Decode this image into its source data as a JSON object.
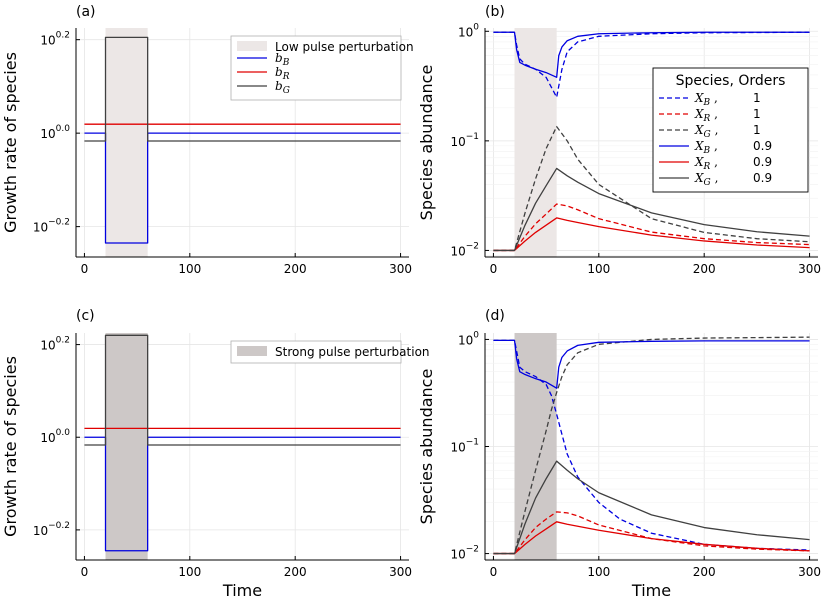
{
  "panels": [
    {
      "id": "a",
      "label": "(a)",
      "type": "line",
      "xlabel": "",
      "ylabel": "Growth rate of species",
      "xlim": [
        -8,
        308
      ],
      "xticks": [
        0,
        100,
        200,
        300
      ],
      "xtick_labels": [
        "0",
        "100",
        "200",
        "300"
      ],
      "yscale": "log10",
      "ylim_log": [
        -0.265,
        0.225
      ],
      "yticks_log": [
        -0.2,
        0.0,
        0.2
      ],
      "ytick_labels": [
        [
          "10",
          "−0.2"
        ],
        [
          "10",
          "0.0"
        ],
        [
          "10",
          "0.2"
        ]
      ],
      "shade": {
        "x0": 20,
        "x1": 60,
        "color": "#ece7e6"
      },
      "legend": {
        "position": "top-right",
        "shade_label": "Low pulse perturbation",
        "entries": [
          {
            "label": "b",
            "sub": "B",
            "color": "#0000e0"
          },
          {
            "label": "b",
            "sub": "R",
            "color": "#e00000"
          },
          {
            "label": "b",
            "sub": "G",
            "color": "#404040"
          }
        ]
      },
      "series": [
        {
          "name": "b_B",
          "color": "#0000e0",
          "dash": false,
          "x": [
            0,
            20,
            20,
            60,
            60,
            300
          ],
          "y_log": [
            0.0,
            0.0,
            -0.235,
            -0.235,
            0.0,
            0.0
          ]
        },
        {
          "name": "b_R",
          "color": "#e00000",
          "dash": false,
          "x": [
            0,
            300
          ],
          "y_log": [
            0.0192,
            0.0192
          ]
        },
        {
          "name": "b_G",
          "color": "#404040",
          "dash": false,
          "x": [
            0,
            20,
            20,
            60,
            60,
            300
          ],
          "y_log": [
            -0.0168,
            -0.0168,
            0.205,
            0.205,
            -0.0168,
            -0.0168
          ]
        }
      ]
    },
    {
      "id": "b",
      "label": "(b)",
      "type": "line",
      "xlabel": "",
      "ylabel": "Species abundance",
      "xlim": [
        -8,
        308
      ],
      "xticks": [
        0,
        100,
        200,
        300
      ],
      "xtick_labels": [
        "0",
        "100",
        "200",
        "300"
      ],
      "yscale": "log10",
      "ylim_log": [
        -2.06,
        0.03
      ],
      "yticks_log": [
        -2,
        -1,
        0
      ],
      "ytick_labels": [
        [
          "10",
          "−2"
        ],
        [
          "10",
          "−1"
        ],
        [
          "10",
          "0"
        ]
      ],
      "shade": {
        "x0": 20,
        "x1": 60,
        "color": "#ece7e6"
      },
      "legend": {
        "position": "right",
        "title": "Species, Orders",
        "entries": [
          {
            "label": "X",
            "sub": "B",
            "order": "1",
            "color": "#0000e0",
            "dash": true
          },
          {
            "label": "X",
            "sub": "R",
            "order": "1",
            "color": "#e00000",
            "dash": true
          },
          {
            "label": "X",
            "sub": "G",
            "order": "1",
            "color": "#404040",
            "dash": true
          },
          {
            "label": "X",
            "sub": "B",
            "order": "0.9",
            "color": "#0000e0",
            "dash": false
          },
          {
            "label": "X",
            "sub": "R",
            "order": "0.9",
            "color": "#e00000",
            "dash": false
          },
          {
            "label": "X",
            "sub": "G",
            "order": "0.9",
            "color": "#404040",
            "dash": false
          }
        ]
      },
      "series": [
        {
          "name": "X_B order 1",
          "color": "#0000e0",
          "dash": true,
          "x": [
            0,
            20,
            22,
            25,
            30,
            40,
            50,
            60,
            65,
            70,
            80,
            100,
            150,
            200,
            300
          ],
          "y": [
            0.98,
            0.98,
            0.75,
            0.56,
            0.5,
            0.45,
            0.38,
            0.25,
            0.45,
            0.65,
            0.8,
            0.9,
            0.95,
            0.97,
            0.98
          ]
        },
        {
          "name": "X_R order 1",
          "color": "#e00000",
          "dash": true,
          "x": [
            0,
            20,
            30,
            40,
            50,
            60,
            70,
            80,
            100,
            150,
            200,
            250,
            300
          ],
          "y": [
            0.01,
            0.01,
            0.0135,
            0.0175,
            0.0215,
            0.0265,
            0.0255,
            0.0235,
            0.0195,
            0.0147,
            0.0128,
            0.0118,
            0.0113
          ]
        },
        {
          "name": "X_G order 1",
          "color": "#404040",
          "dash": true,
          "x": [
            0,
            20,
            30,
            40,
            50,
            60,
            70,
            80,
            100,
            150,
            200,
            250,
            300
          ],
          "y": [
            0.01,
            0.01,
            0.022,
            0.045,
            0.085,
            0.135,
            0.1,
            0.068,
            0.04,
            0.0195,
            0.0146,
            0.0128,
            0.012
          ]
        },
        {
          "name": "X_B order 0.9",
          "color": "#0000e0",
          "dash": false,
          "x": [
            0,
            20,
            22,
            25,
            30,
            40,
            50,
            60,
            62,
            65,
            70,
            80,
            100,
            150,
            200,
            300
          ],
          "y": [
            0.98,
            0.98,
            0.68,
            0.52,
            0.49,
            0.45,
            0.42,
            0.38,
            0.6,
            0.72,
            0.82,
            0.9,
            0.95,
            0.97,
            0.98,
            0.98
          ]
        },
        {
          "name": "X_R order 0.9",
          "color": "#e00000",
          "dash": false,
          "x": [
            0,
            20,
            30,
            40,
            50,
            60,
            70,
            80,
            100,
            150,
            200,
            250,
            300
          ],
          "y": [
            0.01,
            0.01,
            0.0122,
            0.0146,
            0.017,
            0.0198,
            0.0188,
            0.018,
            0.0165,
            0.0138,
            0.0122,
            0.0112,
            0.0106
          ]
        },
        {
          "name": "X_G order 0.9",
          "color": "#404040",
          "dash": false,
          "x": [
            0,
            20,
            30,
            40,
            50,
            60,
            70,
            80,
            100,
            150,
            200,
            250,
            300
          ],
          "y": [
            0.01,
            0.01,
            0.017,
            0.027,
            0.039,
            0.056,
            0.048,
            0.042,
            0.033,
            0.022,
            0.0172,
            0.0148,
            0.0135
          ]
        }
      ]
    },
    {
      "id": "c",
      "label": "(c)",
      "type": "line",
      "xlabel": "Time",
      "ylabel": "Growth rate of species",
      "xlim": [
        -8,
        308
      ],
      "xticks": [
        0,
        100,
        200,
        300
      ],
      "xtick_labels": [
        "0",
        "100",
        "200",
        "300"
      ],
      "yscale": "log10",
      "ylim_log": [
        -0.265,
        0.225
      ],
      "yticks_log": [
        -0.2,
        0.0,
        0.2
      ],
      "ytick_labels": [
        [
          "10",
          "−0.2"
        ],
        [
          "10",
          "0.0"
        ],
        [
          "10",
          "0.2"
        ]
      ],
      "shade": {
        "x0": 20,
        "x1": 60,
        "color": "#cdc8c7"
      },
      "legend": {
        "position": "top-right",
        "shade_label": "Strong pulse perturbation",
        "entries": []
      },
      "series": [
        {
          "name": "b_B",
          "color": "#0000e0",
          "dash": false,
          "x": [
            0,
            20,
            20,
            60,
            60,
            300
          ],
          "y_log": [
            0.0,
            0.0,
            -0.245,
            -0.245,
            0.0,
            0.0
          ]
        },
        {
          "name": "b_R",
          "color": "#e00000",
          "dash": false,
          "x": [
            0,
            300
          ],
          "y_log": [
            0.0192,
            0.0192
          ]
        },
        {
          "name": "b_G",
          "color": "#404040",
          "dash": false,
          "x": [
            0,
            20,
            20,
            60,
            60,
            300
          ],
          "y_log": [
            -0.0168,
            -0.0168,
            0.22,
            0.22,
            -0.0168,
            -0.0168
          ]
        }
      ]
    },
    {
      "id": "d",
      "label": "(d)",
      "type": "line",
      "xlabel": "Time",
      "ylabel": "Species abundance",
      "xlim": [
        -8,
        308
      ],
      "xticks": [
        0,
        100,
        200,
        300
      ],
      "xtick_labels": [
        "0",
        "100",
        "200",
        "300"
      ],
      "yscale": "log10",
      "ylim_log": [
        -2.06,
        0.06
      ],
      "yticks_log": [
        -2,
        -1,
        0
      ],
      "ytick_labels": [
        [
          "10",
          "−2"
        ],
        [
          "10",
          "−1"
        ],
        [
          "10",
          "0"
        ]
      ],
      "shade": {
        "x0": 20,
        "x1": 60,
        "color": "#cdc8c7"
      },
      "legend": null,
      "series": [
        {
          "name": "X_B order 1",
          "color": "#0000e0",
          "dash": true,
          "x": [
            0,
            20,
            25,
            30,
            40,
            50,
            55,
            60,
            65,
            70,
            80,
            100,
            120,
            150,
            200,
            250,
            300
          ],
          "y": [
            0.98,
            0.98,
            0.55,
            0.5,
            0.45,
            0.38,
            0.3,
            0.2,
            0.13,
            0.085,
            0.052,
            0.03,
            0.021,
            0.0155,
            0.0122,
            0.0112,
            0.0108
          ]
        },
        {
          "name": "X_R order 1",
          "color": "#e00000",
          "dash": true,
          "x": [
            0,
            20,
            30,
            40,
            50,
            60,
            70,
            80,
            100,
            150,
            200,
            250,
            300
          ],
          "y": [
            0.01,
            0.01,
            0.0135,
            0.0175,
            0.021,
            0.0245,
            0.024,
            0.0225,
            0.0185,
            0.0138,
            0.0118,
            0.011,
            0.0106
          ]
        },
        {
          "name": "X_G order 1",
          "color": "#404040",
          "dash": true,
          "x": [
            0,
            20,
            30,
            40,
            50,
            55,
            60,
            65,
            70,
            80,
            100,
            150,
            200,
            300
          ],
          "y": [
            0.01,
            0.01,
            0.025,
            0.06,
            0.14,
            0.22,
            0.32,
            0.45,
            0.58,
            0.75,
            0.9,
            1.0,
            1.03,
            1.05
          ]
        },
        {
          "name": "X_B order 0.9",
          "color": "#0000e0",
          "dash": false,
          "x": [
            0,
            20,
            22,
            25,
            30,
            40,
            50,
            60,
            62,
            65,
            70,
            80,
            100,
            150,
            200,
            300
          ],
          "y": [
            0.98,
            0.98,
            0.66,
            0.5,
            0.47,
            0.43,
            0.4,
            0.35,
            0.55,
            0.68,
            0.78,
            0.88,
            0.94,
            0.96,
            0.97,
            0.97
          ]
        },
        {
          "name": "X_R order 0.9",
          "color": "#e00000",
          "dash": false,
          "x": [
            0,
            20,
            30,
            40,
            50,
            60,
            70,
            80,
            100,
            150,
            200,
            250,
            300
          ],
          "y": [
            0.01,
            0.01,
            0.0122,
            0.0146,
            0.017,
            0.0198,
            0.0188,
            0.018,
            0.0165,
            0.0138,
            0.0122,
            0.0112,
            0.0106
          ]
        },
        {
          "name": "X_G order 0.9",
          "color": "#404040",
          "dash": false,
          "x": [
            0,
            20,
            30,
            40,
            50,
            60,
            70,
            80,
            100,
            150,
            200,
            250,
            300
          ],
          "y": [
            0.01,
            0.01,
            0.019,
            0.033,
            0.05,
            0.073,
            0.06,
            0.05,
            0.037,
            0.023,
            0.0175,
            0.015,
            0.0135
          ]
        }
      ]
    }
  ],
  "chart_data": [
    {
      "type": "line",
      "title": "(a)",
      "xlabel": "",
      "ylabel": "Growth rate of species",
      "xlim": [
        0,
        300
      ],
      "yscale": "log10",
      "legend": [
        "Low pulse perturbation",
        "b_B",
        "b_R",
        "b_G"
      ],
      "perturbation_window": [
        20,
        60
      ],
      "series": [
        {
          "name": "b_B",
          "x": [
            0,
            20,
            20,
            60,
            60,
            300
          ],
          "y": [
            1.0,
            1.0,
            0.582,
            0.582,
            1.0,
            1.0
          ]
        },
        {
          "name": "b_R",
          "x": [
            0,
            300
          ],
          "y": [
            1.045,
            1.045
          ]
        },
        {
          "name": "b_G",
          "x": [
            0,
            20,
            20,
            60,
            60,
            300
          ],
          "y": [
            0.962,
            0.962,
            1.603,
            1.603,
            0.962,
            0.962
          ]
        }
      ]
    },
    {
      "type": "line",
      "title": "(b)",
      "xlabel": "",
      "ylabel": "Species abundance",
      "xlim": [
        0,
        300
      ],
      "yscale": "log10",
      "legend_title": "Species, Orders",
      "perturbation_window": [
        20,
        60
      ],
      "series_names": [
        "X_B 1",
        "X_R 1",
        "X_G 1",
        "X_B 0.9",
        "X_R 0.9",
        "X_G 0.9"
      ]
    },
    {
      "type": "line",
      "title": "(c)",
      "xlabel": "Time",
      "ylabel": "Growth rate of species",
      "xlim": [
        0,
        300
      ],
      "yscale": "log10",
      "legend": [
        "Strong pulse perturbation"
      ],
      "perturbation_window": [
        20,
        60
      ],
      "series": [
        {
          "name": "b_B",
          "x": [
            0,
            20,
            20,
            60,
            60,
            300
          ],
          "y": [
            1.0,
            1.0,
            0.569,
            0.569,
            1.0,
            1.0
          ]
        },
        {
          "name": "b_R",
          "x": [
            0,
            300
          ],
          "y": [
            1.045,
            1.045
          ]
        },
        {
          "name": "b_G",
          "x": [
            0,
            20,
            20,
            60,
            60,
            300
          ],
          "y": [
            0.962,
            0.962,
            1.66,
            1.66,
            0.962,
            0.962
          ]
        }
      ]
    },
    {
      "type": "line",
      "title": "(d)",
      "xlabel": "Time",
      "ylabel": "Species abundance",
      "xlim": [
        0,
        300
      ],
      "yscale": "log10",
      "perturbation_window": [
        20,
        60
      ],
      "series_names": [
        "X_B 1",
        "X_R 1",
        "X_G 1",
        "X_B 0.9",
        "X_R 0.9",
        "X_G 0.9"
      ]
    }
  ]
}
